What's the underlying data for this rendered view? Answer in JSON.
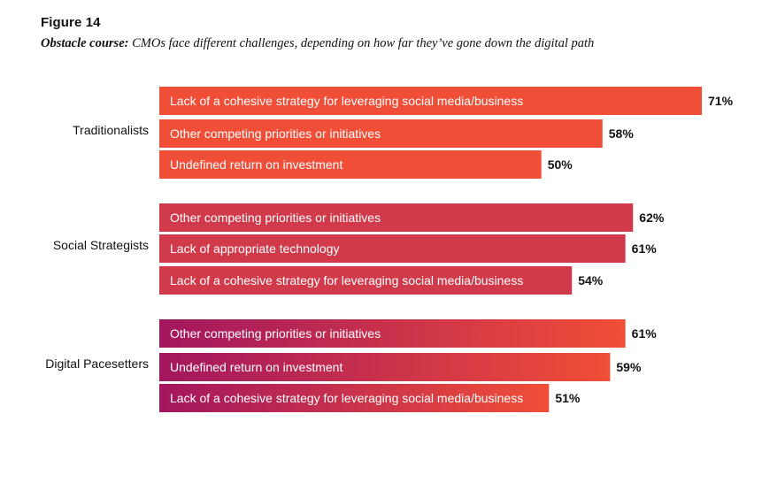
{
  "figure": {
    "label": "Figure 14",
    "title_lead": "Obstacle course:",
    "title_rest": " CMOs face different challenges, depending on how far they’ve gone down the digital path"
  },
  "chart_data": {
    "type": "bar",
    "orientation": "horizontal",
    "value_unit": "%",
    "xlim": [
      0,
      71
    ],
    "grid": false,
    "groups": [
      {
        "name": "Traditionalists",
        "color": "#f04e37",
        "bars": [
          {
            "label": "Lack of a cohesive strategy for leveraging social media/business",
            "value": 71,
            "value_label": "71%"
          },
          {
            "label": "Other competing priorities or initiatives",
            "value": 58,
            "value_label": "58%"
          },
          {
            "label": "Undefined return on investment",
            "value": 50,
            "value_label": "50%"
          }
        ]
      },
      {
        "name": "Social Strategists",
        "color": "#d03a4a",
        "bars": [
          {
            "label": "Other competing priorities or initiatives",
            "value": 62,
            "value_label": "62%"
          },
          {
            "label": "Lack of appropriate technology",
            "value": 61,
            "value_label": "61%"
          },
          {
            "label": "Lack of a cohesive strategy for leveraging social media/business",
            "value": 54,
            "value_label": "54%"
          }
        ]
      },
      {
        "name": "Digital Pacesetters",
        "color_start": "#a3165f",
        "color_end": "#f04e37",
        "bars": [
          {
            "label": "Other competing priorities or initiatives",
            "value": 61,
            "value_label": "61%"
          },
          {
            "label": "Undefined return on investment",
            "value": 59,
            "value_label": "59%"
          },
          {
            "label": "Lack of a cohesive strategy for leveraging social media/business",
            "value": 51,
            "value_label": "51%"
          }
        ]
      }
    ]
  }
}
